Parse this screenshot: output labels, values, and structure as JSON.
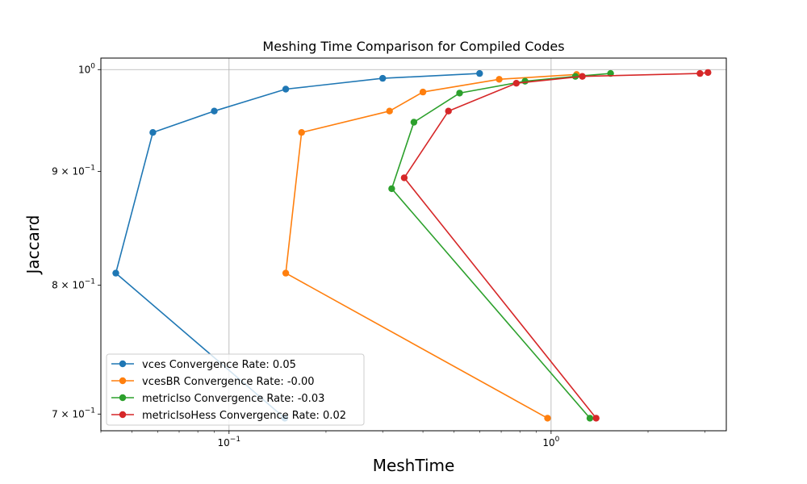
{
  "chart_data": {
    "type": "line",
    "title": "Meshing Time Comparison for Compiled Codes",
    "xlabel": "MeshTime",
    "ylabel": "Jaccard",
    "xscale": "log",
    "yscale": "log",
    "xlim": [
      0.04,
      3.5
    ],
    "ylim": [
      0.688,
      1.012
    ],
    "grid": true,
    "legend_position": "lower-left",
    "x_ticks": [
      {
        "value": 0.1,
        "base": "10",
        "exp": "−1"
      },
      {
        "value": 1,
        "base": "10",
        "exp": "0"
      }
    ],
    "y_ticks": [
      {
        "value": 1.0,
        "base": "10",
        "exp": "0",
        "mant": ""
      },
      {
        "value": 0.9,
        "base": "10",
        "exp": "−1",
        "mant": "9 × "
      },
      {
        "value": 0.8,
        "base": "10",
        "exp": "−1",
        "mant": "8 × "
      },
      {
        "value": 0.7,
        "base": "10",
        "exp": "−1",
        "mant": "7 × "
      }
    ],
    "series": [
      {
        "name": "vces Convergence Rate: 0.05",
        "color": "#1f77b4",
        "x": [
          0.149,
          0.0445,
          0.058,
          0.09,
          0.15,
          0.3,
          0.6
        ],
        "y": [
          0.697,
          0.81,
          0.937,
          0.958,
          0.98,
          0.991,
          0.996
        ]
      },
      {
        "name": "vcesBR Convergence Rate: -0.00",
        "color": "#ff7f0e",
        "x": [
          0.975,
          0.15,
          0.168,
          0.315,
          0.4,
          0.69,
          1.2
        ],
        "y": [
          0.697,
          0.81,
          0.937,
          0.958,
          0.977,
          0.99,
          0.995
        ]
      },
      {
        "name": "metricIso Convergence Rate: -0.03",
        "color": "#2ca02c",
        "x": [
          1.32,
          0.32,
          0.375,
          0.52,
          0.83,
          1.19,
          1.53
        ],
        "y": [
          0.697,
          0.884,
          0.947,
          0.976,
          0.988,
          0.993,
          0.996
        ]
      },
      {
        "name": "metricIsoHess Convergence Rate: 0.02",
        "color": "#d62728",
        "x": [
          1.38,
          0.35,
          0.48,
          0.78,
          1.25,
          2.9,
          3.07
        ],
        "y": [
          0.697,
          0.894,
          0.958,
          0.986,
          0.993,
          0.996,
          0.997
        ]
      }
    ]
  }
}
